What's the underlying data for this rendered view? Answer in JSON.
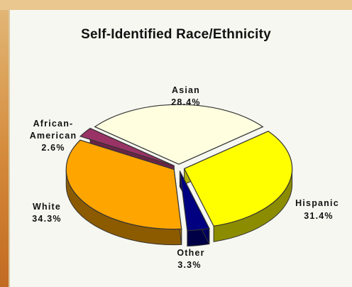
{
  "chart_data": {
    "type": "pie",
    "title": "Self-Identified Race/Ethnicity",
    "slices": [
      {
        "label": "Asian",
        "value": 28.4,
        "value_text": "28.4%",
        "color": "#ffffe0"
      },
      {
        "label": "Hispanic",
        "value": 31.4,
        "value_text": "31.4%",
        "color": "#ffff00"
      },
      {
        "label": "Other",
        "value": 3.3,
        "value_text": "3.3%",
        "color": "#000080"
      },
      {
        "label": "White",
        "value": 34.3,
        "value_text": "34.3%",
        "color": "#ffa500"
      },
      {
        "label": "African-American",
        "value": 2.6,
        "value_text": "2.6%",
        "color": "#993366"
      }
    ]
  }
}
